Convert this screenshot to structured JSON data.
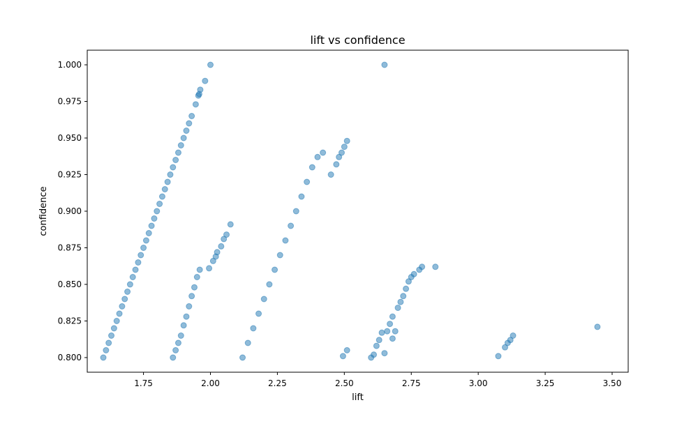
{
  "chart_data": {
    "type": "scatter",
    "title": "lift vs confidence",
    "xlabel": "lift",
    "ylabel": "confidence",
    "xlim": [
      1.54,
      3.56
    ],
    "ylim": [
      0.79,
      1.01
    ],
    "x_ticks": [
      1.75,
      2.0,
      2.25,
      2.5,
      2.75,
      3.0,
      3.25,
      3.5
    ],
    "x_tick_labels": [
      "1.75",
      "2.00",
      "2.25",
      "2.50",
      "2.75",
      "3.00",
      "3.25",
      "3.50"
    ],
    "y_ticks": [
      0.8,
      0.825,
      0.85,
      0.875,
      0.9,
      0.925,
      0.95,
      0.975,
      1.0
    ],
    "y_tick_labels": [
      "0.800",
      "0.825",
      "0.850",
      "0.875",
      "0.900",
      "0.925",
      "0.950",
      "0.975",
      "1.000"
    ],
    "grid": false,
    "marker_color": "#1f77b4",
    "marker_alpha": 0.5,
    "series": [
      {
        "points": [
          [
            1.6,
            0.8
          ],
          [
            1.61,
            0.805
          ],
          [
            1.62,
            0.81
          ],
          [
            1.63,
            0.815
          ],
          [
            1.64,
            0.82
          ],
          [
            1.65,
            0.825
          ],
          [
            1.66,
            0.83
          ],
          [
            1.67,
            0.835
          ],
          [
            1.68,
            0.84
          ],
          [
            1.69,
            0.845
          ],
          [
            1.7,
            0.85
          ],
          [
            1.71,
            0.855
          ],
          [
            1.72,
            0.86
          ],
          [
            1.73,
            0.865
          ],
          [
            1.74,
            0.87
          ],
          [
            1.75,
            0.875
          ],
          [
            1.76,
            0.88
          ],
          [
            1.77,
            0.885
          ],
          [
            1.78,
            0.89
          ],
          [
            1.79,
            0.895
          ],
          [
            1.8,
            0.9
          ],
          [
            1.81,
            0.905
          ],
          [
            1.82,
            0.91
          ],
          [
            1.83,
            0.915
          ],
          [
            1.84,
            0.92
          ],
          [
            1.85,
            0.925
          ],
          [
            1.86,
            0.93
          ],
          [
            1.87,
            0.935
          ],
          [
            1.88,
            0.94
          ],
          [
            1.89,
            0.945
          ],
          [
            1.9,
            0.95
          ],
          [
            1.91,
            0.955
          ],
          [
            1.92,
            0.96
          ],
          [
            1.93,
            0.965
          ],
          [
            1.945,
            0.973
          ],
          [
            1.955,
            0.979
          ],
          [
            1.958,
            0.98
          ],
          [
            1.962,
            0.983
          ],
          [
            1.98,
            0.989
          ],
          [
            2.0,
            1.0
          ],
          [
            1.86,
            0.8
          ],
          [
            1.87,
            0.805
          ],
          [
            1.88,
            0.81
          ],
          [
            1.89,
            0.815
          ],
          [
            1.9,
            0.822
          ],
          [
            1.91,
            0.828
          ],
          [
            1.92,
            0.835
          ],
          [
            1.93,
            0.842
          ],
          [
            1.94,
            0.848
          ],
          [
            1.95,
            0.855
          ],
          [
            1.96,
            0.86
          ],
          [
            1.995,
            0.861
          ],
          [
            2.01,
            0.866
          ],
          [
            2.02,
            0.869
          ],
          [
            2.025,
            0.872
          ],
          [
            2.04,
            0.876
          ],
          [
            2.05,
            0.881
          ],
          [
            2.06,
            0.884
          ],
          [
            2.075,
            0.891
          ],
          [
            2.12,
            0.8
          ],
          [
            2.14,
            0.81
          ],
          [
            2.16,
            0.82
          ],
          [
            2.18,
            0.83
          ],
          [
            2.2,
            0.84
          ],
          [
            2.22,
            0.85
          ],
          [
            2.24,
            0.86
          ],
          [
            2.26,
            0.87
          ],
          [
            2.28,
            0.88
          ],
          [
            2.3,
            0.89
          ],
          [
            2.32,
            0.9
          ],
          [
            2.34,
            0.91
          ],
          [
            2.36,
            0.92
          ],
          [
            2.38,
            0.93
          ],
          [
            2.4,
            0.937
          ],
          [
            2.42,
            0.94
          ],
          [
            2.45,
            0.925
          ],
          [
            2.47,
            0.932
          ],
          [
            2.48,
            0.937
          ],
          [
            2.49,
            0.94
          ],
          [
            2.5,
            0.944
          ],
          [
            2.51,
            0.948
          ],
          [
            2.495,
            0.801
          ],
          [
            2.51,
            0.805
          ],
          [
            2.6,
            0.8
          ],
          [
            2.61,
            0.802
          ],
          [
            2.62,
            0.808
          ],
          [
            2.63,
            0.812
          ],
          [
            2.64,
            0.817
          ],
          [
            2.65,
            0.803
          ],
          [
            2.66,
            0.818
          ],
          [
            2.67,
            0.823
          ],
          [
            2.68,
            0.828
          ],
          [
            2.68,
            0.813
          ],
          [
            2.69,
            0.818
          ],
          [
            2.7,
            0.834
          ],
          [
            2.71,
            0.838
          ],
          [
            2.72,
            0.842
          ],
          [
            2.73,
            0.847
          ],
          [
            2.74,
            0.852
          ],
          [
            2.75,
            0.855
          ],
          [
            2.76,
            0.857
          ],
          [
            2.78,
            0.86
          ],
          [
            2.79,
            0.862
          ],
          [
            2.84,
            0.862
          ],
          [
            2.65,
            1.0
          ],
          [
            3.075,
            0.801
          ],
          [
            3.1,
            0.807
          ],
          [
            3.11,
            0.81
          ],
          [
            3.12,
            0.812
          ],
          [
            3.13,
            0.815
          ],
          [
            3.445,
            0.821
          ]
        ]
      }
    ]
  }
}
